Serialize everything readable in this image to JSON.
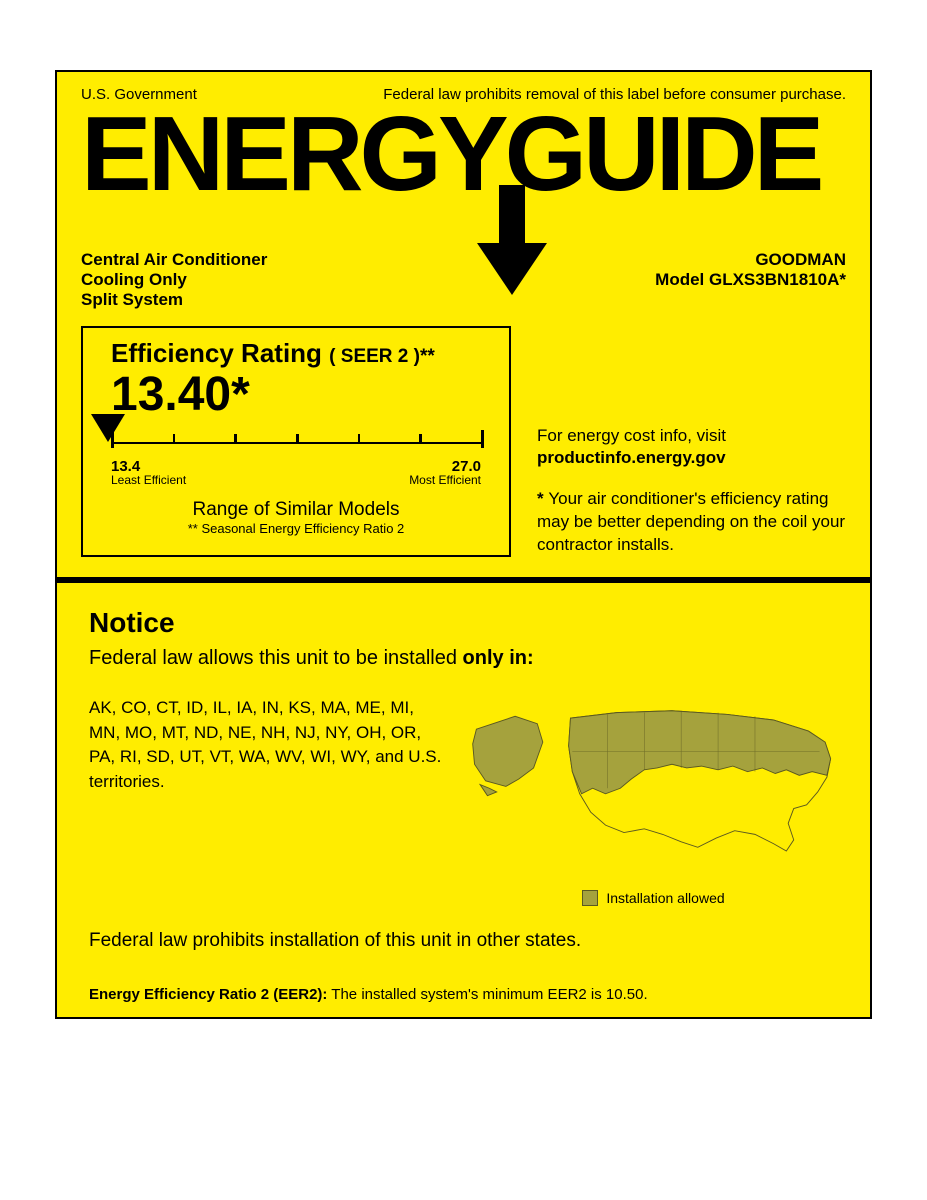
{
  "colors": {
    "label_bg": "#ffed00",
    "border": "#000000",
    "map_allowed": "#a5a23d",
    "map_allowed_stroke": "#5a5820"
  },
  "header": {
    "gov": "U.S. Government",
    "warning": "Federal law prohibits removal of this label before consumer purchase.",
    "logo": "ENERGYGUIDE"
  },
  "product": {
    "type1": "Central Air Conditioner",
    "type2": "Cooling Only",
    "type3": "Split System",
    "brand": "GOODMAN",
    "model_label": "Model GLXS3BN1810A*"
  },
  "rating": {
    "title": "Efficiency Rating",
    "title_sub": "( SEER 2 )**",
    "value": "13.40*",
    "scale_min": "13.4",
    "scale_min_label": "Least Efficient",
    "scale_max": "27.0",
    "scale_max_label": "Most Efficient",
    "range_title": "Range of Similar Models",
    "range_sub": "** Seasonal Energy Efficiency Ratio 2",
    "tick_count": 7
  },
  "side": {
    "intro": "For energy cost info, visit",
    "link": "productinfo.energy.gov",
    "note_star": "*",
    "note": "Your air conditioner's efficiency rating may be better depending on the coil your contractor installs."
  },
  "notice": {
    "heading": "Notice",
    "line_pre": "Federal law allows this unit to be installed ",
    "line_bold": "only in:",
    "states": "AK, CO, CT, ID, IL, IA, IN, KS, MA, ME, MI, MN, MO, MT, ND, NE, NH, NJ, NY, OH, OR, PA, RI, SD, UT, VT, WA, WV, WI, WY, and U.S. territories.",
    "legend": "Installation allowed",
    "prohibit": "Federal law prohibits installation of this unit in other states."
  },
  "eer": {
    "label": "Energy Efficiency Ratio 2 (EER2):",
    "text": " The installed system's minimum EER2 is 10.50."
  }
}
